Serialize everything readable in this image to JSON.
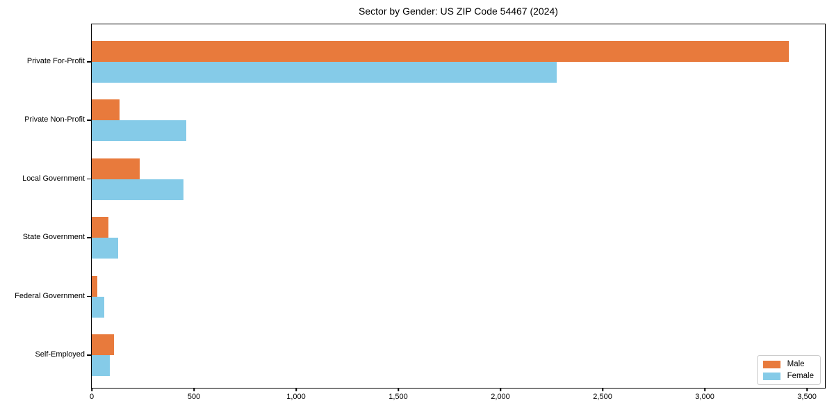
{
  "title": "Sector by Gender: US ZIP Code 54467 (2024)",
  "colors": {
    "male": "#E87A3C",
    "female": "#85CBE8",
    "frame": "#000000",
    "legend_border": "#cccccc",
    "background": "#ffffff"
  },
  "chart_data": {
    "type": "bar",
    "orientation": "horizontal",
    "title": "Sector by Gender: US ZIP Code 54467 (2024)",
    "xlabel": "",
    "ylabel": "",
    "categories": [
      "Private For-Profit",
      "Private Non-Profit",
      "Local Government",
      "State Government",
      "Federal Government",
      "Self-Employed"
    ],
    "series": [
      {
        "name": "Male",
        "color": "#E87A3C",
        "values": [
          3412,
          136,
          235,
          82,
          27,
          108
        ]
      },
      {
        "name": "Female",
        "color": "#85CBE8",
        "values": [
          2276,
          462,
          448,
          128,
          60,
          87
        ]
      }
    ],
    "xlim": [
      0,
      3595
    ],
    "xticks": {
      "values": [
        0,
        500,
        1000,
        1500,
        2000,
        2500,
        3000,
        3500
      ],
      "labels": [
        "0",
        "500",
        "1,000",
        "1,500",
        "2,000",
        "2,500",
        "3,000",
        "3,500"
      ]
    },
    "grid": false,
    "legend_position": "lower right",
    "legend_labels": [
      "Male",
      "Female"
    ]
  }
}
